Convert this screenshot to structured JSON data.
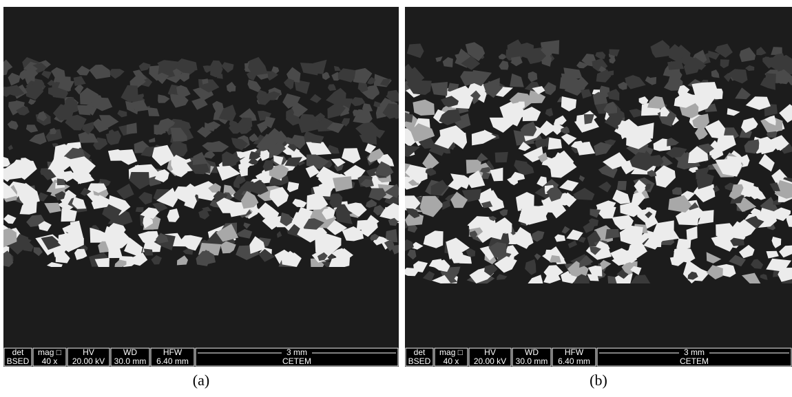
{
  "panels": [
    {
      "caption": "(a)",
      "info_bar": {
        "headers": [
          "det",
          "mag □",
          "HV",
          "WD",
          "HFW"
        ],
        "values": [
          "BSED",
          "40 x",
          "20.00 kV",
          "30.0 mm",
          "6.40 mm"
        ],
        "scale_label": "3 mm",
        "institute": "CETEM"
      }
    },
    {
      "caption": "(b)",
      "info_bar": {
        "headers": [
          "det",
          "mag □",
          "HV",
          "WD",
          "HFW"
        ],
        "values": [
          "BSED",
          "40 x",
          "20.00 kV",
          "30.0 mm",
          "6.40 mm"
        ],
        "scale_label": "3 mm",
        "institute": "CETEM"
      }
    }
  ]
}
